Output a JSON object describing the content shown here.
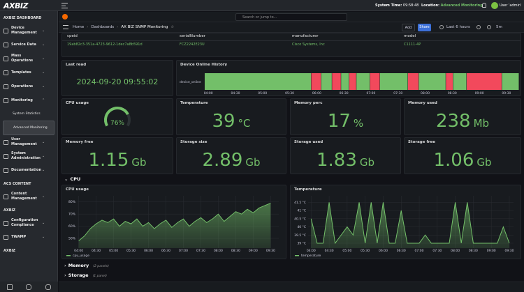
{
  "topbar": {
    "logo": "AXBIZ",
    "system_time_label": "System Time:",
    "system_time": "09:58:48",
    "location_label": "Location:",
    "location": "Advanced Monitoring",
    "user": "User 'admin'"
  },
  "sidebar": [
    {
      "title": "AXBIZ DASHBOARD",
      "items": [
        {
          "label": "Device Management"
        },
        {
          "label": "Service Data"
        },
        {
          "label": "Mass Operations"
        },
        {
          "label": "Templates"
        },
        {
          "label": "Operations"
        },
        {
          "label": "Monitoring",
          "children": [
            {
              "label": "System Statistics"
            },
            {
              "label": "Advanced Monitoring",
              "active": true
            }
          ]
        },
        {
          "label": "User Management"
        },
        {
          "label": "System Administration"
        },
        {
          "label": "Documentation"
        }
      ]
    },
    {
      "title": "ACS CONTENT",
      "items": [
        {
          "label": "Content Management"
        }
      ]
    },
    {
      "title": "AXBIZ",
      "items": [
        {
          "label": "Configuration Compliance"
        },
        {
          "label": "TWAMP"
        }
      ]
    },
    {
      "title": "AXBIZ",
      "items": []
    }
  ],
  "nav": {
    "search": "Search or jump to...",
    "breadcrumbs": [
      "Home",
      "Dashboards",
      "AX BIZ SNMP Monitoring"
    ],
    "add": "Add",
    "share": "Share",
    "time_range": "Last 6 hours",
    "refresh": "5m"
  },
  "table": {
    "columns": [
      "cpeid",
      "serialNumber",
      "manufacturer",
      "model"
    ],
    "rows": [
      [
        "19ab82c3-351a-4723-9612-1dec7a8b591d",
        "FCZ2242E23U",
        "Cisco Systems, Inc",
        "C1111-4P"
      ]
    ]
  },
  "last_read": {
    "title": "Last read",
    "value": "2024-09-20 09:55:02"
  },
  "stats": [
    {
      "title": "Temperature",
      "value": 39,
      "unit": "°C"
    },
    {
      "title": "Memory perc",
      "value": 17,
      "unit": "%"
    },
    {
      "title": "Memory used",
      "value": 238,
      "unit": "Mb"
    },
    {
      "title": "Memory free",
      "value": 1.15,
      "unit": "Gb"
    },
    {
      "title": "Storage size",
      "value": 2.89,
      "unit": "Gb"
    },
    {
      "title": "Storage used",
      "value": 1.83,
      "unit": "Gb"
    },
    {
      "title": "Storage free",
      "value": 1.06,
      "unit": "Gb"
    }
  ],
  "rows": [
    {
      "title": "CPU"
    },
    {
      "title": "Memory",
      "note": "(2 panels)"
    },
    {
      "title": "Storage",
      "note": "(1 panel)"
    }
  ],
  "chart_data": [
    {
      "type": "gauge",
      "title": "CPU usage",
      "value": 76,
      "value_label": "76%",
      "ylim": [
        0,
        100
      ],
      "color": "#73bf69"
    },
    {
      "type": "state-timeline",
      "title": "Device Online History",
      "state_colors": {
        "0": "#f2495c",
        "1": "#73bf69"
      },
      "xlim": [
        "03:56",
        "09:44"
      ],
      "xticks": [
        "04:00",
        "04:30",
        "05:00",
        "05:30",
        "06:00",
        "06:30",
        "07:00",
        "07:30",
        "08:00",
        "08:30",
        "09:00",
        "09:30"
      ],
      "series": [
        {
          "name": "device_online",
          "start": [
            "03:56",
            "05:54",
            "06:05",
            "06:17",
            "06:27",
            "06:36",
            "06:44",
            "06:59",
            "07:10",
            "07:41",
            "07:53",
            "08:23",
            "08:31",
            "08:46",
            "09:25"
          ],
          "end": [
            "05:54",
            "06:05",
            "06:17",
            "06:27",
            "06:36",
            "06:44",
            "06:59",
            "07:10",
            "07:41",
            "07:53",
            "08:23",
            "08:31",
            "08:46",
            "09:25",
            "09:44"
          ],
          "values": [
            1,
            0,
            1,
            0,
            1,
            0,
            1,
            0,
            1,
            0,
            1,
            0,
            1,
            0,
            1
          ]
        }
      ]
    },
    {
      "type": "line",
      "title": "CPU usage",
      "x": [
        "04:00",
        "04:10",
        "04:20",
        "04:30",
        "04:40",
        "04:50",
        "05:00",
        "05:10",
        "05:20",
        "05:30",
        "05:40",
        "05:50",
        "06:00",
        "06:10",
        "06:20",
        "06:30",
        "06:40",
        "06:50",
        "07:00",
        "07:10",
        "07:20",
        "07:30",
        "07:40",
        "07:50",
        "08:00",
        "08:10",
        "08:20",
        "08:30",
        "08:40",
        "08:50",
        "09:00",
        "09:10",
        "09:20",
        "09:30"
      ],
      "series": [
        {
          "name": "cpu_usage",
          "color": "#73bf69",
          "values": [
            48,
            52,
            58,
            62,
            65,
            63,
            66,
            60,
            64,
            62,
            66,
            60,
            63,
            58,
            62,
            65,
            59,
            63,
            66,
            60,
            64,
            67,
            63,
            66,
            70,
            64,
            68,
            72,
            70,
            74,
            71,
            75,
            77,
            79
          ]
        }
      ],
      "xlim": [
        "03:58",
        "09:44"
      ],
      "xticks": [
        "04:00",
        "04:30",
        "05:00",
        "05:30",
        "06:00",
        "06:30",
        "07:00",
        "07:30",
        "08:00",
        "08:30",
        "09:00",
        "09:30"
      ],
      "ylim": [
        42,
        85
      ],
      "yticks": [
        {
          "value": 50,
          "label": "50%"
        },
        {
          "value": 60,
          "label": "60%"
        },
        {
          "value": 70,
          "label": "70%"
        },
        {
          "value": 80,
          "label": "80%"
        }
      ]
    },
    {
      "type": "line",
      "title": "Temperature",
      "x": [
        "04:00",
        "04:10",
        "04:20",
        "04:30",
        "04:40",
        "04:50",
        "05:00",
        "05:10",
        "05:20",
        "05:30",
        "05:40",
        "05:50",
        "06:00",
        "06:10",
        "06:20",
        "06:30",
        "06:40",
        "06:50",
        "07:00",
        "07:10",
        "07:20",
        "07:30",
        "07:40",
        "07:50",
        "08:00",
        "08:10",
        "08:20",
        "08:30",
        "08:40",
        "08:50",
        "09:00",
        "09:10",
        "09:20",
        "09:30"
      ],
      "series": [
        {
          "name": "temperature",
          "color": "#73bf69",
          "values": [
            40.5,
            39,
            39,
            41.5,
            39,
            39.5,
            40,
            39.5,
            41.5,
            39,
            41.5,
            39,
            41.5,
            39,
            39,
            41,
            39,
            39,
            39,
            39.5,
            39,
            39,
            39,
            39,
            41.5,
            39,
            41.5,
            39,
            39,
            39,
            39,
            39,
            40,
            39
          ]
        }
      ],
      "xlim": [
        "03:55",
        "09:37"
      ],
      "xticks": [
        "04:00",
        "04:30",
        "05:00",
        "05:30",
        "06:00",
        "06:30",
        "07:00",
        "07:30",
        "08:00",
        "08:30",
        "09:00",
        "09:30"
      ],
      "ylim": [
        38.7,
        41.9
      ],
      "yticks": [
        {
          "value": 39,
          "label": "39 °C"
        },
        {
          "value": 39.5,
          "label": "39.5 °C"
        },
        {
          "value": 40,
          "label": "40 °C"
        },
        {
          "value": 40.5,
          "label": "40.5 °C"
        },
        {
          "value": 41,
          "label": "41 °C"
        },
        {
          "value": 41.5,
          "label": "41.5 °C"
        }
      ]
    }
  ]
}
